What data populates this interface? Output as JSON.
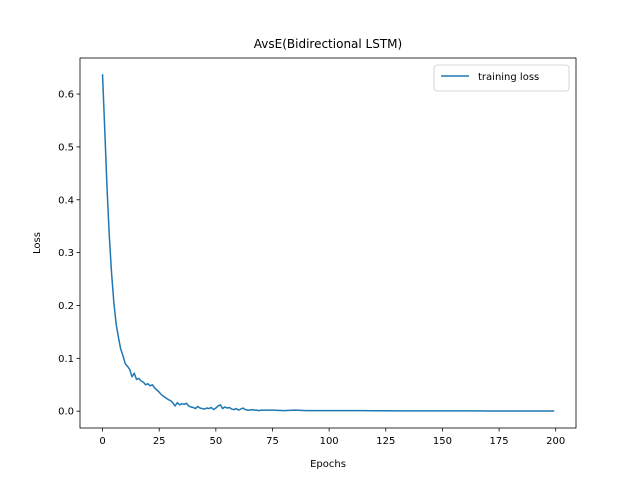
{
  "chart_data": {
    "type": "line",
    "title": "AvsE(Bidirectional LSTM)",
    "xlabel": "Epochs",
    "ylabel": "Loss",
    "xlim": [
      -9.95,
      208.95
    ],
    "ylim": [
      -0.0318,
      0.6682
    ],
    "xticks": [
      0,
      25,
      50,
      75,
      100,
      125,
      150,
      175,
      200
    ],
    "yticks": [
      0.0,
      0.1,
      0.2,
      0.3,
      0.4,
      0.5,
      0.6
    ],
    "ytick_labels": [
      "0.0",
      "0.1",
      "0.2",
      "0.3",
      "0.4",
      "0.5",
      "0.6"
    ],
    "grid": false,
    "legend_position": "top-right",
    "line_color": "#1f77b4",
    "series": [
      {
        "name": "training loss",
        "x": [
          0,
          1,
          2,
          3,
          4,
          5,
          6,
          7,
          8,
          9,
          10,
          11,
          12,
          13,
          14,
          15,
          16,
          17,
          18,
          19,
          20,
          21,
          22,
          23,
          24,
          25,
          26,
          27,
          28,
          29,
          30,
          31,
          32,
          33,
          34,
          35,
          36,
          37,
          38,
          39,
          40,
          41,
          42,
          43,
          44,
          45,
          46,
          47,
          48,
          49,
          50,
          51,
          52,
          53,
          54,
          55,
          56,
          57,
          58,
          59,
          60,
          61,
          62,
          63,
          64,
          65,
          66,
          67,
          68,
          69,
          70,
          75,
          80,
          85,
          90,
          95,
          100,
          105,
          110,
          115,
          120,
          125,
          130,
          135,
          140,
          145,
          150,
          155,
          160,
          165,
          170,
          175,
          180,
          185,
          190,
          195,
          199
        ],
        "y": [
          0.636,
          0.53,
          0.42,
          0.33,
          0.26,
          0.205,
          0.165,
          0.14,
          0.118,
          0.105,
          0.09,
          0.085,
          0.079,
          0.065,
          0.072,
          0.06,
          0.062,
          0.057,
          0.055,
          0.05,
          0.052,
          0.048,
          0.05,
          0.044,
          0.04,
          0.036,
          0.031,
          0.028,
          0.025,
          0.022,
          0.02,
          0.016,
          0.01,
          0.016,
          0.012,
          0.014,
          0.013,
          0.015,
          0.01,
          0.008,
          0.007,
          0.005,
          0.009,
          0.006,
          0.005,
          0.004,
          0.006,
          0.005,
          0.007,
          0.003,
          0.006,
          0.01,
          0.012,
          0.005,
          0.008,
          0.006,
          0.007,
          0.004,
          0.003,
          0.005,
          0.002,
          0.004,
          0.006,
          0.003,
          0.002,
          0.002,
          0.003,
          0.002,
          0.002,
          0.001,
          0.002,
          0.002,
          0.001,
          0.002,
          0.001,
          0.001,
          0.001,
          0.001,
          0.001,
          0.001,
          0.0008,
          0.0008,
          0.0007,
          0.0007,
          0.0006,
          0.0006,
          0.0005,
          0.0005,
          0.0005,
          0.0005,
          0.0004,
          0.0004,
          0.0004,
          0.0004,
          0.0003,
          0.0003,
          0.0003
        ]
      }
    ]
  }
}
